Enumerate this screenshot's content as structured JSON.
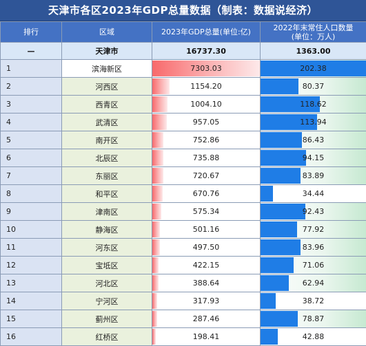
{
  "title": "天津市各区2023年GDP总量数据（制表：数据说经济）",
  "headers": {
    "rank": "排行",
    "district": "区域",
    "gdp": "2023年GDP总量(单位:亿)",
    "pop_line1": "2022年末常住人口数量",
    "pop_line2": "(单位：万人)"
  },
  "total": {
    "rank": "—",
    "district": "天津市",
    "gdp": "16737.30",
    "pop": "1363.00"
  },
  "rows": [
    {
      "rank": "1",
      "district": "滨海新区",
      "gdp": "7303.03",
      "pop": "202.38"
    },
    {
      "rank": "2",
      "district": "河西区",
      "gdp": "1154.20",
      "pop": "80.37"
    },
    {
      "rank": "3",
      "district": "西青区",
      "gdp": "1004.10",
      "pop": "118.62"
    },
    {
      "rank": "4",
      "district": "武清区",
      "gdp": "957.05",
      "pop": "113.94"
    },
    {
      "rank": "5",
      "district": "南开区",
      "gdp": "752.86",
      "pop": "86.43"
    },
    {
      "rank": "6",
      "district": "北辰区",
      "gdp": "735.88",
      "pop": "94.15"
    },
    {
      "rank": "7",
      "district": "东丽区",
      "gdp": "720.67",
      "pop": "83.89"
    },
    {
      "rank": "8",
      "district": "和平区",
      "gdp": "670.76",
      "pop": "34.44"
    },
    {
      "rank": "9",
      "district": "津南区",
      "gdp": "575.34",
      "pop": "92.43"
    },
    {
      "rank": "10",
      "district": "静海区",
      "gdp": "501.16",
      "pop": "77.92"
    },
    {
      "rank": "11",
      "district": "河东区",
      "gdp": "497.50",
      "pop": "83.96"
    },
    {
      "rank": "12",
      "district": "宝坻区",
      "gdp": "422.15",
      "pop": "71.06"
    },
    {
      "rank": "13",
      "district": "河北区",
      "gdp": "388.64",
      "pop": "62.94"
    },
    {
      "rank": "14",
      "district": "宁河区",
      "gdp": "317.93",
      "pop": "38.72"
    },
    {
      "rank": "15",
      "district": "蓟州区",
      "gdp": "287.46",
      "pop": "78.87"
    },
    {
      "rank": "16",
      "district": "红桥区",
      "gdp": "198.41",
      "pop": "42.88"
    }
  ],
  "colors": {
    "title_bg": "#2f5597",
    "header_bg": "#4472c4",
    "gdp_bar": "#f8696b",
    "pop_bar": "#1f7de6"
  }
}
